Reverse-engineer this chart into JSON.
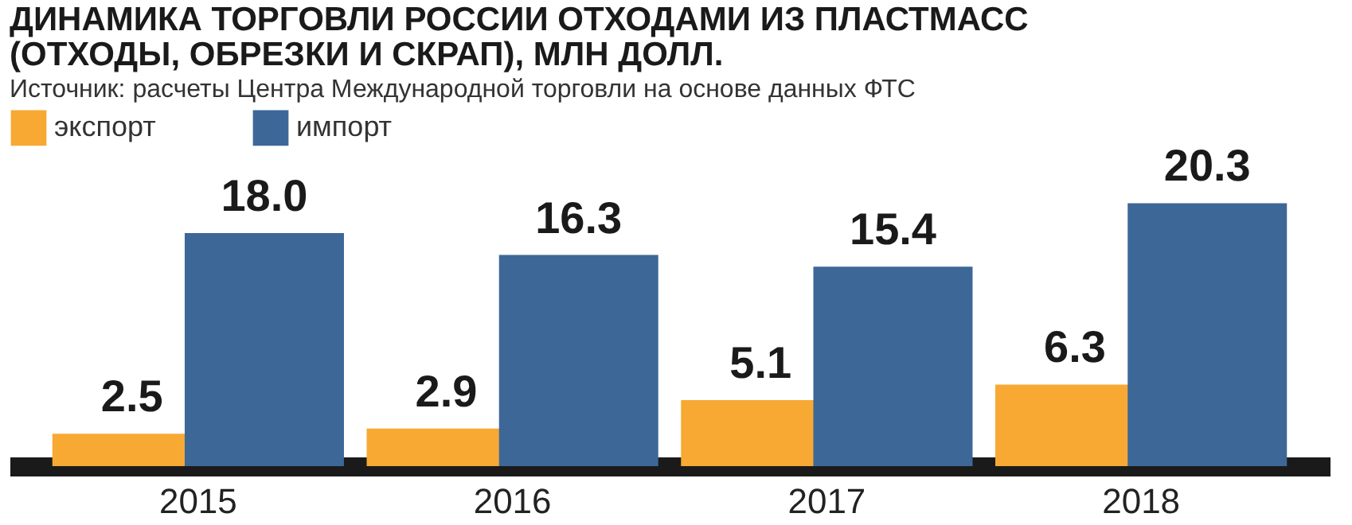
{
  "chart_data": {
    "type": "bar",
    "title": "ДИНАМИКА ТОРГОВЛИ РОССИИ ОТХОДАМИ ИЗ ПЛАСТМАСС (ОТХОДЫ, ОБРЕЗКИ И СКРАП), МЛН ДОЛЛ.",
    "annotations": [
      "Источник: расчеты Центра Международной торговли на основе данных ФТС"
    ],
    "categories": [
      "2015",
      "2016",
      "2017",
      "2018"
    ],
    "series": [
      {
        "name": "экспорт",
        "color": "#f7a934",
        "values": [
          2.5,
          2.9,
          5.1,
          6.3
        ],
        "value_labels": [
          "2.5",
          "2.9",
          "5.1",
          "6.3"
        ]
      },
      {
        "name": "импорт",
        "color": "#3d6797",
        "values": [
          18.0,
          16.3,
          15.4,
          20.3
        ],
        "value_labels": [
          "18.0",
          "16.3",
          "15.4",
          "20.3"
        ]
      }
    ],
    "legend": "top left",
    "grid": false
  }
}
